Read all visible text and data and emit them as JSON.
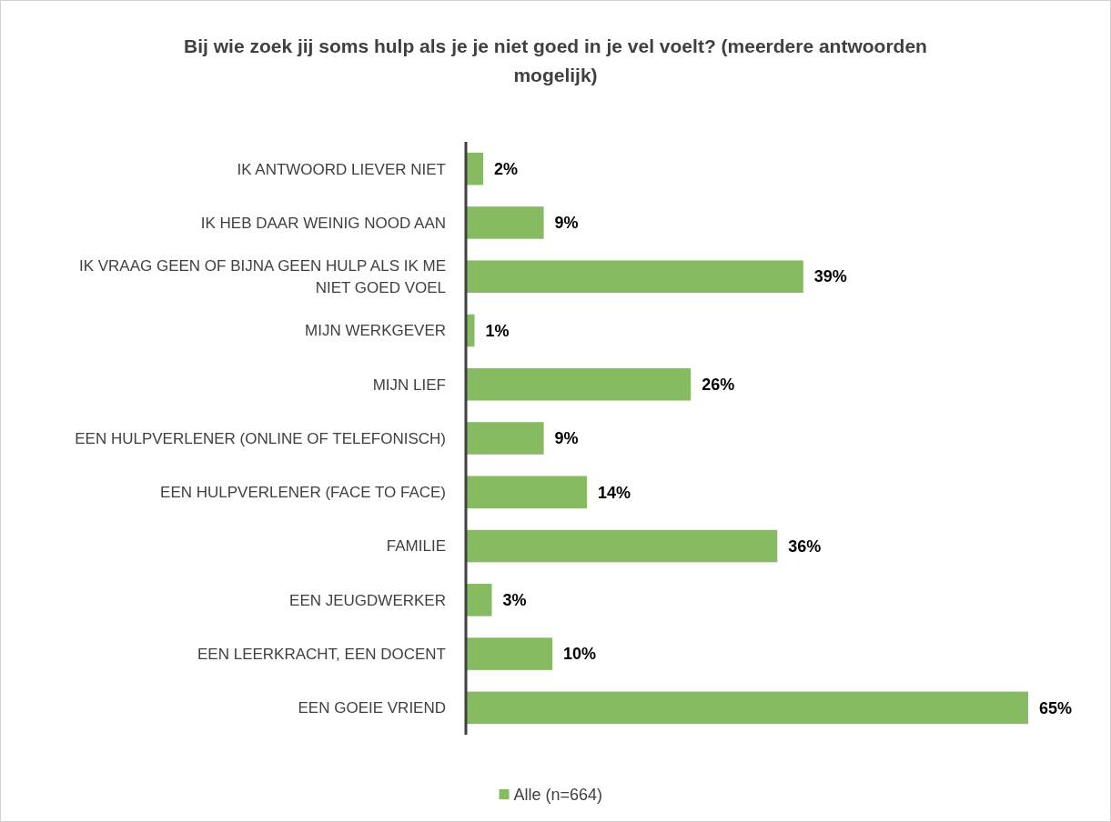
{
  "chart_data": {
    "type": "bar",
    "orientation": "horizontal",
    "title": "Bij wie zoek jij soms hulp als je je niet goed in je vel voelt? (meerdere antwoorden mogelijk)",
    "categories": [
      "IK ANTWOORD LIEVER NIET",
      "IK HEB DAAR WEINIG NOOD AAN",
      "IK VRAAG GEEN OF BIJNA GEEN HULP ALS IK ME NIET GOED VOEL",
      "MIJN WERKGEVER",
      "MIJN LIEF",
      "EEN HULPVERLENER (ONLINE OF TELEFONISCH)",
      "EEN HULPVERLENER (FACE TO FACE)",
      "FAMILIE",
      "EEN JEUGDWERKER",
      "EEN LEERKRACHT, EEN DOCENT",
      "EEN GOEIE VRIEND"
    ],
    "series": [
      {
        "name": "Alle (n=664)",
        "color": "#87bb62",
        "values": [
          2,
          9,
          39,
          1,
          26,
          9,
          14,
          36,
          3,
          10,
          65
        ],
        "value_labels": [
          "2%",
          "9%",
          "39%",
          "1%",
          "26%",
          "9%",
          "14%",
          "36%",
          "3%",
          "10%",
          "65%"
        ]
      }
    ],
    "legend": "bottom"
  }
}
